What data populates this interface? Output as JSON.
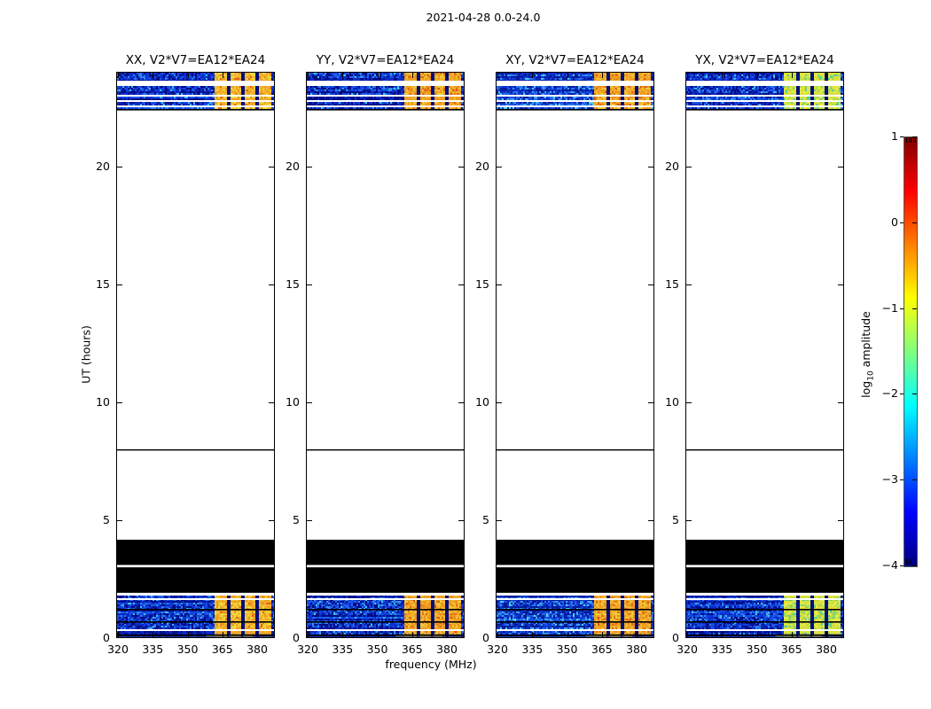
{
  "figure": {
    "suptitle": "2021-04-28 0.0-24.0",
    "background": "#ffffff",
    "text_color": "#000000"
  },
  "axis": {
    "xlabel": "frequency (MHz)",
    "ylabel": "UT (hours)",
    "x_tick_labels": [
      "320",
      "335",
      "350",
      "365",
      "380"
    ],
    "y_tick_labels": [
      "0",
      "5",
      "10",
      "15",
      "20"
    ]
  },
  "colorbar": {
    "label_prefix": "log",
    "label_sub": "10",
    "label_suffix": " amplitude",
    "tick_labels": [
      "1",
      "0",
      "−1",
      "−2",
      "−3",
      "−4"
    ],
    "colormap": "jet",
    "top_color": "#7f0000",
    "bottom_color": "#000080"
  },
  "chart_data": {
    "type": "heatmap",
    "title": "2021-04-28 0.0-24.0",
    "xlabel": "frequency (MHz)",
    "ylabel": "UT (hours)",
    "x_ticks": [
      320,
      335,
      350,
      365,
      380
    ],
    "y_ticks": [
      0,
      5,
      10,
      15,
      20
    ],
    "xlim_mhz": [
      319.2,
      387.6
    ],
    "ylim_hours": [
      0,
      24
    ],
    "grid": false,
    "colorbar": {
      "label": "log10 amplitude",
      "ticks": [
        1,
        0,
        -1,
        -2,
        -3,
        -4
      ],
      "range_log10": [
        -4,
        1
      ],
      "colormap": "jet"
    },
    "panels": [
      {
        "title": "XX, V2*V7=EA12*EA24",
        "pol": "XX",
        "seed": 11,
        "noise_style": "dark",
        "block_style": "orange"
      },
      {
        "title": "YY, V2*V7=EA12*EA24",
        "pol": "YY",
        "seed": 23,
        "noise_style": "mid",
        "block_style": "orange_red"
      },
      {
        "title": "XY, V2*V7=EA12*EA24",
        "pol": "XY",
        "seed": 37,
        "noise_style": "bright",
        "block_style": "orange_red"
      },
      {
        "title": "YX, V2*V7=EA12*EA24",
        "pol": "YX",
        "seed": 51,
        "noise_style": "dark",
        "block_style": "yellow_green"
      }
    ],
    "bands": [
      {
        "kind": "spectrum",
        "ut": [
          23.62,
          23.96
        ],
        "white_lines_ut": [],
        "black_lines_ut": []
      },
      {
        "kind": "spectrum",
        "ut": [
          22.4,
          23.38
        ],
        "white_lines_ut": [
          23.02,
          22.79,
          22.56
        ],
        "black_lines_ut": [
          22.44
        ]
      },
      {
        "kind": "black_line",
        "ut": 8.0
      },
      {
        "kind": "black_fill",
        "ut": [
          3.1,
          4.17
        ]
      },
      {
        "kind": "black_fill",
        "ut": [
          1.92,
          3.0
        ]
      },
      {
        "kind": "spectrum",
        "ut": [
          0.05,
          1.8
        ],
        "white_lines_ut": [
          1.7,
          0.38
        ],
        "black_lines_ut": [
          1.24,
          0.71,
          0.16
        ],
        "bottom_dark_row_ut": [
          0.05,
          0.16
        ],
        "bottom_row_bright_mhz": [
          358,
          378
        ]
      }
    ],
    "rfi_block_mhz": {
      "range": [
        361.5,
        385.5
      ],
      "gap_centers_mhz": [
        367.5,
        373.5,
        379.5
      ]
    },
    "noise_palettes": {
      "dark": [
        "#000d85",
        "#0a2ac8",
        "#1241e0",
        "#1b58ea",
        "#2f86e8",
        "#3fc0e8"
      ],
      "mid": [
        "#000d85",
        "#0c30cc",
        "#1448e2",
        "#2162ec",
        "#2f96e8",
        "#42c8e8"
      ],
      "bright": [
        "#041a9a",
        "#0d34d0",
        "#1a50e6",
        "#2a74ee",
        "#38a8e8",
        "#4cd4ea"
      ]
    },
    "block_palettes": {
      "orange": [
        "#f0a224",
        "#f3b62c",
        "#eecb35",
        "#f0dc3c",
        "#ea8b1e",
        "#e2641a"
      ],
      "orange_red": [
        "#ef9d20",
        "#f3b62c",
        "#eecb35",
        "#ea8b1e",
        "#e06a16",
        "#d85812"
      ],
      "yellow_green": [
        "#dfe135",
        "#d3e343",
        "#abd94b",
        "#e9ea4d",
        "#6fd37c",
        "#4acf9e"
      ]
    }
  }
}
